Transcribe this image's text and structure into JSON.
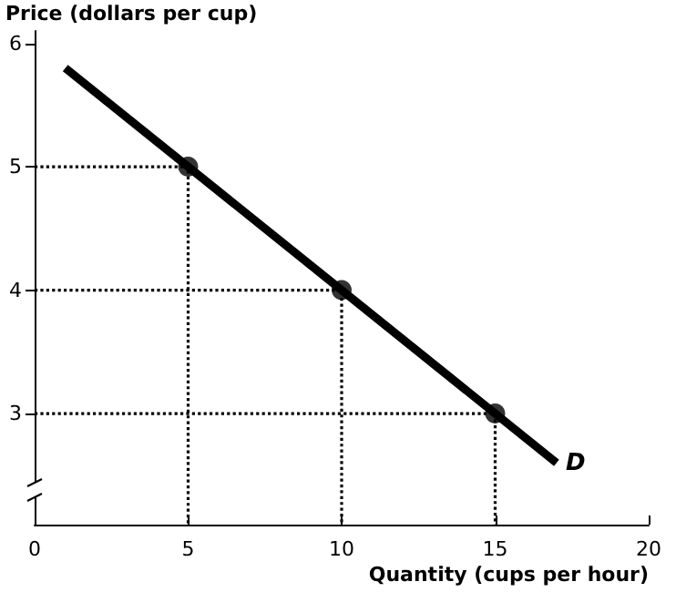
{
  "chart_data": {
    "type": "line",
    "xlabel": "Quantity (cups per hour)",
    "ylabel": "Price (dollars per cup)",
    "xlim": [
      0,
      20
    ],
    "ylim": [
      2.1,
      6.1
    ],
    "xticks": [
      0,
      5,
      10,
      15,
      20
    ],
    "yticks": [
      3,
      4,
      5,
      6
    ],
    "grid": false,
    "series": [
      {
        "color": "#000000",
        "marker": "none",
        "line_style": "solid",
        "x": [
          1,
          17
        ],
        "values": [
          5.8,
          2.6
        ]
      },
      {
        "type": "scatter",
        "color": "#000000",
        "marker": "circle",
        "x": [
          5,
          10,
          15
        ],
        "values": [
          5,
          4,
          3
        ]
      },
      {
        "type": "line",
        "color": "#000000",
        "marker": "none",
        "line_style": "dotted",
        "x": [
          0,
          5,
          5
        ],
        "values": [
          5,
          5,
          2.1
        ]
      },
      {
        "type": "line",
        "color": "#000000",
        "marker": "none",
        "line_style": "dotted",
        "x": [
          0,
          10,
          10
        ],
        "values": [
          4,
          4,
          2.1
        ]
      },
      {
        "type": "line",
        "color": "#000000",
        "marker": "none",
        "line_style": "dotted",
        "x": [
          0,
          15,
          15
        ],
        "values": [
          3,
          3,
          2.1
        ]
      }
    ],
    "annotations": [
      "D"
    ]
  }
}
